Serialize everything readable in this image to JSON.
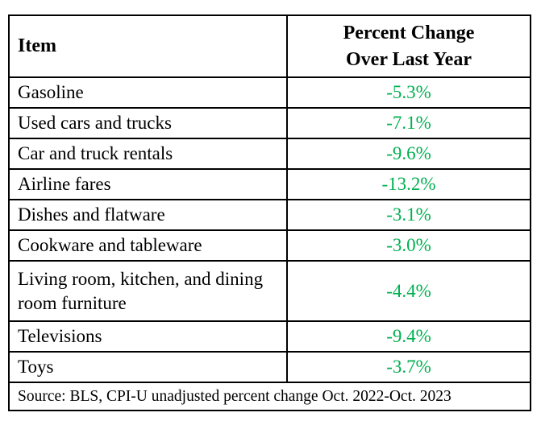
{
  "chart_data": {
    "type": "table",
    "title": "",
    "columns": [
      "Item",
      "Percent Change\nOver Last Year"
    ],
    "rows": [
      {
        "item": "Gasoline",
        "change": "-5.3%",
        "value": -5.3
      },
      {
        "item": "Used cars and trucks",
        "change": "-7.1%",
        "value": -7.1
      },
      {
        "item": "Car and truck rentals",
        "change": "-9.6%",
        "value": -9.6
      },
      {
        "item": "Airline fares",
        "change": "-13.2%",
        "value": -13.2
      },
      {
        "item": "Dishes and flatware",
        "change": "-3.1%",
        "value": -3.1
      },
      {
        "item": "Cookware and tableware",
        "change": "-3.0%",
        "value": -3.0
      },
      {
        "item": "Living room, kitchen, and dining room furniture",
        "change": "-4.4%",
        "value": -4.4
      },
      {
        "item": "Televisions",
        "change": "-9.4%",
        "value": -9.4
      },
      {
        "item": "Toys",
        "change": "-3.7%",
        "value": -3.7
      }
    ],
    "source": "Source: BLS, CPI-U unadjusted percent change Oct. 2022-Oct. 2023",
    "layout": {
      "legend": "none",
      "grid": "full-borders"
    },
    "colors": {
      "value_text": "#00B050",
      "border": "#000000",
      "header_text": "#000000",
      "body_text": "#000000",
      "background": "#ffffff"
    }
  }
}
